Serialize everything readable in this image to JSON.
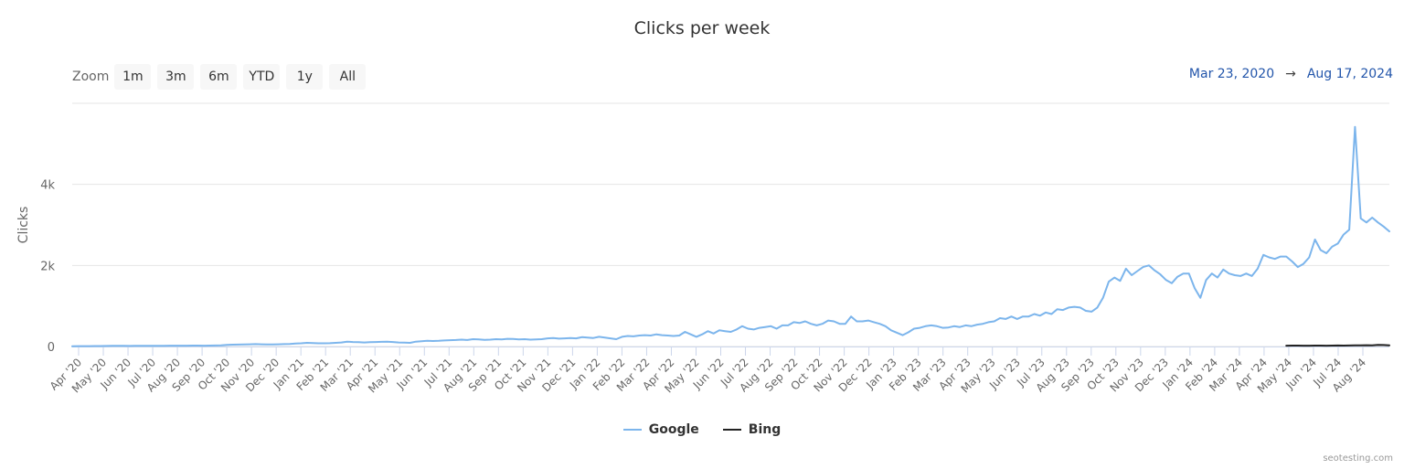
{
  "header": {
    "title": "Clicks per week"
  },
  "zoom": {
    "label": "Zoom",
    "buttons": [
      "1m",
      "3m",
      "6m",
      "YTD",
      "1y",
      "All"
    ]
  },
  "range": {
    "from": "Mar 23, 2020",
    "arrow": "→",
    "to": "Aug 17, 2024"
  },
  "legend": {
    "items": [
      {
        "label": "Google",
        "color": "#7cb5ec"
      },
      {
        "label": "Bing",
        "color": "#222222"
      }
    ]
  },
  "credits": "seotesting.com",
  "chart_data": {
    "type": "line",
    "title": "Clicks per week",
    "xlabel": "",
    "ylabel": "Clicks",
    "ylim": [
      0,
      6000
    ],
    "y_ticks": [
      "0",
      "2k",
      "4k"
    ],
    "grid": true,
    "legend_position": "bottom-center",
    "x_tick_labels": [
      "Apr '20",
      "May '20",
      "Jun '20",
      "Jul '20",
      "Aug '20",
      "Sep '20",
      "Oct '20",
      "Nov '20",
      "Dec '20",
      "Jan '21",
      "Feb '21",
      "Mar '21",
      "Apr '21",
      "May '21",
      "Jun '21",
      "Jul '21",
      "Aug '21",
      "Sep '21",
      "Oct '21",
      "Nov '21",
      "Dec '21",
      "Jan '22",
      "Feb '22",
      "Mar '22",
      "Apr '22",
      "May '22",
      "Jun '22",
      "Jul '22",
      "Aug '22",
      "Sep '22",
      "Oct '22",
      "Nov '22",
      "Dec '22",
      "Jan '23",
      "Feb '23",
      "Mar '23",
      "Apr '23",
      "May '23",
      "Jun '23",
      "Jul '23",
      "Aug '23",
      "Sep '23",
      "Oct '23",
      "Nov '23",
      "Dec '23",
      "Jan '24",
      "Feb '24",
      "Mar '24",
      "Apr '24",
      "May '24",
      "Jun '24",
      "Jul '24",
      "Aug '24"
    ],
    "x_start": "2020-03-23",
    "x_end": "2024-08-17",
    "interval": "week",
    "series": [
      {
        "name": "Google",
        "color": "#7cb5ec",
        "start_week_index": 0,
        "values": [
          5,
          8,
          10,
          10,
          12,
          12,
          14,
          15,
          15,
          15,
          14,
          15,
          15,
          16,
          18,
          18,
          18,
          20,
          20,
          20,
          20,
          22,
          22,
          20,
          22,
          25,
          28,
          40,
          45,
          48,
          50,
          55,
          58,
          55,
          52,
          50,
          55,
          58,
          60,
          75,
          80,
          90,
          85,
          80,
          78,
          82,
          90,
          100,
          120,
          110,
          105,
          100,
          105,
          110,
          115,
          120,
          110,
          100,
          95,
          90,
          120,
          130,
          140,
          135,
          140,
          150,
          155,
          160,
          170,
          160,
          180,
          175,
          165,
          170,
          180,
          175,
          190,
          185,
          175,
          180,
          170,
          175,
          180,
          200,
          210,
          195,
          200,
          210,
          200,
          230,
          220,
          210,
          240,
          220,
          200,
          180,
          240,
          260,
          250,
          270,
          280,
          270,
          300,
          280,
          270,
          260,
          270,
          360,
          300,
          240,
          300,
          380,
          320,
          400,
          380,
          360,
          420,
          500,
          440,
          420,
          460,
          480,
          500,
          440,
          520,
          520,
          600,
          580,
          620,
          560,
          520,
          560,
          640,
          620,
          560,
          560,
          740,
          620,
          620,
          640,
          600,
          560,
          500,
          400,
          340,
          280,
          350,
          440,
          460,
          500,
          520,
          500,
          460,
          470,
          500,
          480,
          520,
          500,
          540,
          560,
          600,
          620,
          700,
          680,
          740,
          680,
          740,
          740,
          800,
          760,
          840,
          800,
          920,
          900,
          960,
          980,
          960,
          880,
          860,
          960,
          1200,
          1600,
          1700,
          1620,
          1920,
          1760,
          1860,
          1960,
          2000,
          1880,
          1780,
          1640,
          1560,
          1720,
          1800,
          1800,
          1440,
          1200,
          1640,
          1800,
          1700,
          1900,
          1800,
          1760,
          1740,
          1800,
          1740,
          1920,
          2260,
          2200,
          2160,
          2220,
          2220,
          2100,
          1960,
          2040,
          2200,
          2640,
          2380,
          2300,
          2460,
          2540,
          2760,
          2880,
          5420,
          3160,
          3060,
          3180,
          3060,
          2960,
          2840
        ]
      },
      {
        "name": "Bing",
        "color": "#222222",
        "start_week_index": 212,
        "values": [
          20,
          22,
          22,
          20,
          21,
          22,
          22,
          20,
          23,
          24,
          22,
          25,
          28,
          30,
          32,
          30,
          40,
          35,
          30
        ]
      }
    ]
  }
}
